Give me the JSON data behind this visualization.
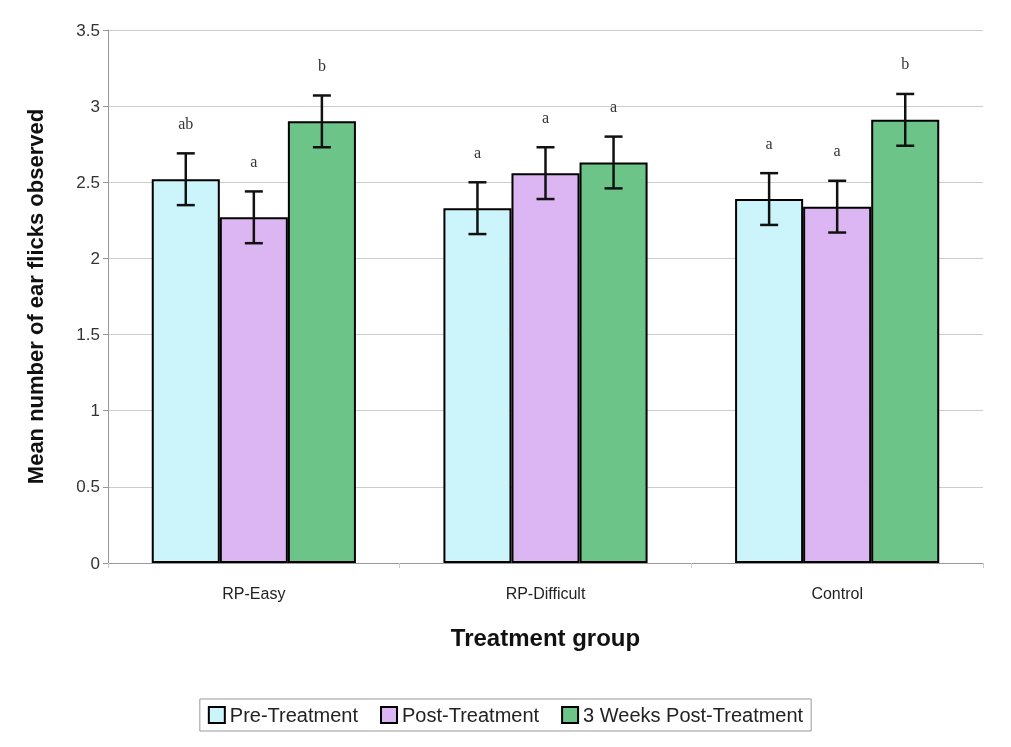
{
  "chart_data": {
    "type": "bar",
    "xlabel": "Treatment group",
    "ylabel": "Mean number of ear flicks observed",
    "categories": [
      "RP-Easy",
      "RP-Difficult",
      "Control"
    ],
    "series": [
      {
        "name": "Pre-Treatment",
        "color": "#ccf4fb",
        "values": [
          2.52,
          2.33,
          2.39
        ],
        "errors": [
          0.17,
          0.17,
          0.17
        ],
        "value_labels": [
          "ab",
          "a",
          "a"
        ]
      },
      {
        "name": "Post-Treatment",
        "color": "#dcb6f2",
        "values": [
          2.27,
          2.56,
          2.34
        ],
        "errors": [
          0.17,
          0.17,
          0.17
        ],
        "value_labels": [
          "a",
          "a",
          "a"
        ]
      },
      {
        "name": "3 Weeks Post-Treatment",
        "color": "#6cc489",
        "values": [
          2.9,
          2.63,
          2.91
        ],
        "errors": [
          0.17,
          0.17,
          0.17
        ],
        "value_labels": [
          "b",
          "a",
          "b"
        ]
      }
    ],
    "ylim": [
      0,
      3.5
    ],
    "yticks": [
      0,
      0.5,
      1,
      1.5,
      2,
      2.5,
      3,
      3.5
    ],
    "grid": "y",
    "legend": "bottom"
  }
}
